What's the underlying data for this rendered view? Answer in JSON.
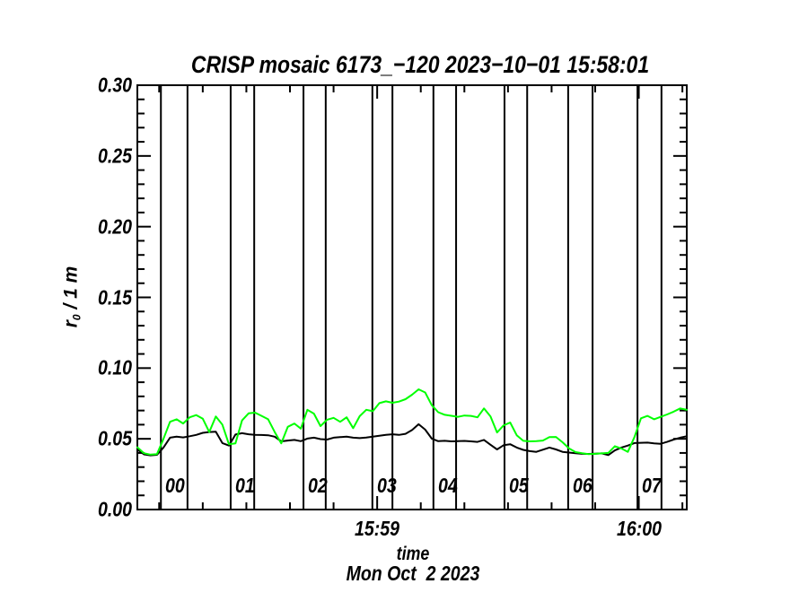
{
  "page": {
    "background": "#ffffff"
  },
  "chart_data": {
    "type": "line",
    "title": "CRISP mosaic 6173_−120 2023−10−01 15:58:01",
    "xlabel": "time",
    "date_label": "Mon Oct  2 2023",
    "ylabel": {
      "base": "r",
      "sub": "0",
      "rest": " / 1 m"
    },
    "x_axis": {
      "unit": "seconds after 15:58:00",
      "range": [
        5,
        131
      ],
      "major_ticks": [
        {
          "t": 60,
          "label": "15:59"
        },
        {
          "t": 120,
          "label": "16:00"
        }
      ],
      "minor_tick_step": 10,
      "minor_tick_start": 10,
      "minor_tick_end": 130
    },
    "y_axis": {
      "range": [
        0,
        0.3
      ],
      "major_tick_step": 0.05,
      "minor_tick_step": 0.01,
      "tick_labels": [
        "0.00",
        "0.05",
        "0.10",
        "0.15",
        "0.20",
        "0.25",
        "0.30"
      ]
    },
    "grid": "off",
    "legend": "none",
    "scan_markers": [
      {
        "label": "00",
        "t_start": 10.4,
        "t_end": 16.5
      },
      {
        "label": "01",
        "t_start": 26.4,
        "t_end": 31.8
      },
      {
        "label": "02",
        "t_start": 43.1,
        "t_end": 48.2
      },
      {
        "label": "03",
        "t_start": 58.9,
        "t_end": 63.5
      },
      {
        "label": "04",
        "t_start": 72.9,
        "t_end": 78.1
      },
      {
        "label": "05",
        "t_start": 89.2,
        "t_end": 94.4
      },
      {
        "label": "06",
        "t_start": 103.8,
        "t_end": 109.4
      },
      {
        "label": "07",
        "t_start": 119.7,
        "t_end": 125.2
      }
    ],
    "t": [
      5,
      6.5,
      8,
      9.5,
      11,
      12.5,
      14,
      15.5,
      17,
      18.5,
      20,
      21.5,
      23,
      24.5,
      26,
      27.5,
      29,
      30.5,
      32,
      33.5,
      35,
      36.5,
      38,
      39.5,
      41,
      42.5,
      44,
      45.5,
      47,
      48.5,
      50,
      51.5,
      53,
      54.5,
      56,
      57.5,
      59,
      60.5,
      62,
      63.5,
      65,
      66.5,
      68,
      69.5,
      71,
      72.5,
      74,
      75.5,
      77,
      78.5,
      80,
      81.5,
      83,
      84.5,
      86,
      87.5,
      89,
      90.5,
      92,
      93.5,
      95,
      96.5,
      98,
      99.5,
      101,
      102.5,
      104,
      105.5,
      107,
      108.5,
      110,
      111.5,
      113,
      114.5,
      116,
      117.5,
      119,
      120.5,
      122,
      123.5,
      125,
      126.5,
      128,
      129.5,
      131
    ],
    "series": [
      {
        "name": "r0-green",
        "color": "#00ff00",
        "values": [
          0.044,
          0.0398,
          0.0388,
          0.0392,
          0.05,
          0.062,
          0.0638,
          0.0608,
          0.0652,
          0.0668,
          0.0642,
          0.0548,
          0.0658,
          0.06,
          0.0462,
          0.0468,
          0.063,
          0.068,
          0.0685,
          0.0662,
          0.0638,
          0.0548,
          0.0468,
          0.0585,
          0.0608,
          0.0572,
          0.0705,
          0.0678,
          0.059,
          0.0635,
          0.0648,
          0.062,
          0.0652,
          0.0575,
          0.066,
          0.0705,
          0.0695,
          0.0752,
          0.0765,
          0.0755,
          0.0763,
          0.078,
          0.0812,
          0.085,
          0.0828,
          0.0738,
          0.0688,
          0.067,
          0.0663,
          0.0655,
          0.0665,
          0.0662,
          0.0652,
          0.0715,
          0.0658,
          0.0545,
          0.0595,
          0.0615,
          0.0525,
          0.0486,
          0.0482,
          0.0483,
          0.0488,
          0.0512,
          0.0513,
          0.0476,
          0.0432,
          0.0406,
          0.0398,
          0.0392,
          0.0394,
          0.0397,
          0.04,
          0.0448,
          0.0432,
          0.0408,
          0.0512,
          0.0645,
          0.0662,
          0.0638,
          0.0655,
          0.0672,
          0.0692,
          0.0715,
          0.0705
        ]
      },
      {
        "name": "r0-black",
        "color": "#000000",
        "values": [
          0.0425,
          0.039,
          0.0383,
          0.0387,
          0.0438,
          0.0508,
          0.0515,
          0.051,
          0.0518,
          0.0528,
          0.0542,
          0.0548,
          0.055,
          0.047,
          0.0452,
          0.053,
          0.054,
          0.0532,
          0.0528,
          0.0527,
          0.0525,
          0.0515,
          0.0482,
          0.0488,
          0.0492,
          0.0483,
          0.0502,
          0.0508,
          0.0498,
          0.0495,
          0.0508,
          0.0512,
          0.0515,
          0.0508,
          0.0505,
          0.0509,
          0.0515,
          0.0522,
          0.0528,
          0.0532,
          0.0528,
          0.0535,
          0.0562,
          0.0603,
          0.0565,
          0.0502,
          0.0483,
          0.0486,
          0.0482,
          0.0483,
          0.0485,
          0.0482,
          0.0478,
          0.0492,
          0.0458,
          0.0425,
          0.0455,
          0.0462,
          0.0438,
          0.0422,
          0.0413,
          0.0408,
          0.0423,
          0.0438,
          0.0425,
          0.0408,
          0.0403,
          0.0398,
          0.0394,
          0.0393,
          0.0395,
          0.0397,
          0.0385,
          0.0418,
          0.0438,
          0.0452,
          0.047,
          0.0472,
          0.0473,
          0.0468,
          0.0465,
          0.0478,
          0.0495,
          0.0508,
          0.0518
        ]
      }
    ]
  }
}
